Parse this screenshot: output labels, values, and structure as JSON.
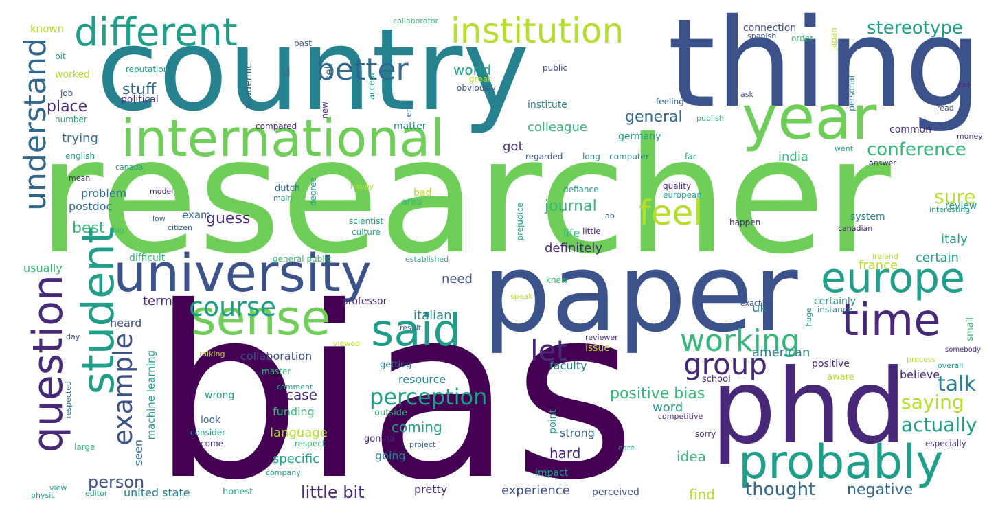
{
  "palette": {
    "dark_purple": "#440154",
    "indigo": "#482878",
    "slate_blue": "#3b528b",
    "blue": "#31688e",
    "teal_blue": "#26828e",
    "teal": "#1f9e89",
    "green": "#35b779",
    "light_green": "#6ece58",
    "lime": "#b5de2b",
    "yellow": "#fde725"
  },
  "words": [
    {
      "text": "researcher",
      "tone": "light_green"
    },
    {
      "text": "country",
      "tone": "teal_blue"
    },
    {
      "text": "thing",
      "tone": "slate_blue"
    },
    {
      "text": "bias",
      "tone": "dark_purple"
    },
    {
      "text": "paper",
      "tone": "slate_blue"
    },
    {
      "text": "phd",
      "tone": "indigo"
    },
    {
      "text": "year",
      "tone": "light_green"
    },
    {
      "text": "international",
      "tone": "light_green"
    },
    {
      "text": "university",
      "tone": "slate_blue"
    },
    {
      "text": "different",
      "tone": "teal"
    },
    {
      "text": "institution",
      "tone": "lime"
    },
    {
      "text": "better",
      "tone": "blue"
    },
    {
      "text": "sense",
      "tone": "light_green"
    },
    {
      "text": "student",
      "tone": "teal"
    },
    {
      "text": "question",
      "tone": "indigo"
    },
    {
      "text": "understand",
      "tone": "blue"
    },
    {
      "text": "said",
      "tone": "teal"
    },
    {
      "text": "time",
      "tone": "indigo"
    },
    {
      "text": "europe",
      "tone": "teal"
    },
    {
      "text": "probably",
      "tone": "teal"
    },
    {
      "text": "feel",
      "tone": "lime"
    },
    {
      "text": "working",
      "tone": "green"
    },
    {
      "text": "group",
      "tone": "indigo"
    },
    {
      "text": "course",
      "tone": "teal"
    },
    {
      "text": "example",
      "tone": "slate_blue"
    },
    {
      "text": "let",
      "tone": "indigo"
    },
    {
      "text": "perception",
      "tone": "teal"
    },
    {
      "text": "stereotype",
      "tone": "teal"
    },
    {
      "text": "conference",
      "tone": "green"
    },
    {
      "text": "sure",
      "tone": "lime"
    },
    {
      "text": "talk",
      "tone": "teal_blue"
    },
    {
      "text": "saying",
      "tone": "lime"
    },
    {
      "text": "actually",
      "tone": "teal"
    },
    {
      "text": "person",
      "tone": "slate_blue"
    },
    {
      "text": "little bit",
      "tone": "indigo"
    },
    {
      "text": "thought",
      "tone": "blue"
    },
    {
      "text": "negative",
      "tone": "blue"
    },
    {
      "text": "positive bias",
      "tone": "green"
    },
    {
      "text": "journal",
      "tone": "green"
    },
    {
      "text": "general",
      "tone": "blue"
    },
    {
      "text": "world",
      "tone": "teal"
    },
    {
      "text": "stuff",
      "tone": "blue"
    },
    {
      "text": "place",
      "tone": "indigo"
    },
    {
      "text": "trying",
      "tone": "blue"
    },
    {
      "text": "colleague",
      "tone": "green"
    },
    {
      "text": "got",
      "tone": "indigo"
    },
    {
      "text": "india",
      "tone": "green"
    },
    {
      "text": "guess",
      "tone": "indigo"
    },
    {
      "text": "best",
      "tone": "green"
    },
    {
      "text": "problem",
      "tone": "blue"
    },
    {
      "text": "postdoc",
      "tone": "blue"
    },
    {
      "text": "exam",
      "tone": "blue"
    },
    {
      "text": "definitely",
      "tone": "indigo"
    },
    {
      "text": "life",
      "tone": "green"
    },
    {
      "text": "italy",
      "tone": "teal"
    },
    {
      "text": "certain",
      "tone": "teal"
    },
    {
      "text": "france",
      "tone": "lime"
    },
    {
      "text": "review",
      "tone": "teal"
    },
    {
      "text": "system",
      "tone": "teal_blue"
    },
    {
      "text": "uk",
      "tone": "teal_blue"
    },
    {
      "text": "american",
      "tone": "teal_blue"
    },
    {
      "text": "believe",
      "tone": "indigo"
    },
    {
      "text": "certainly",
      "tone": "teal_blue"
    },
    {
      "text": "need",
      "tone": "slate_blue"
    },
    {
      "text": "term",
      "tone": "indigo"
    },
    {
      "text": "italian",
      "tone": "teal_blue"
    },
    {
      "text": "heard",
      "tone": "slate_blue"
    },
    {
      "text": "collaboration",
      "tone": "slate_blue"
    },
    {
      "text": "case",
      "tone": "indigo"
    },
    {
      "text": "resource",
      "tone": "teal_blue"
    },
    {
      "text": "faculty",
      "tone": "teal_blue"
    },
    {
      "text": "hard",
      "tone": "indigo"
    },
    {
      "text": "idea",
      "tone": "green"
    },
    {
      "text": "word",
      "tone": "teal"
    },
    {
      "text": "strong",
      "tone": "blue"
    },
    {
      "text": "coming",
      "tone": "teal"
    },
    {
      "text": "language",
      "tone": "lime"
    },
    {
      "text": "funding",
      "tone": "green"
    },
    {
      "text": "specific",
      "tone": "teal"
    },
    {
      "text": "experience",
      "tone": "slate_blue"
    },
    {
      "text": "find",
      "tone": "lime"
    },
    {
      "text": "united state",
      "tone": "teal_blue"
    },
    {
      "text": "pretty",
      "tone": "indigo"
    },
    {
      "text": "going",
      "tone": "teal_blue"
    },
    {
      "text": "look",
      "tone": "blue"
    },
    {
      "text": "seen",
      "tone": "blue"
    },
    {
      "text": "wrong",
      "tone": "teal"
    },
    {
      "text": "usually",
      "tone": "green"
    },
    {
      "text": "difficult",
      "tone": "green"
    },
    {
      "text": "known",
      "tone": "lime"
    },
    {
      "text": "worked",
      "tone": "lime"
    },
    {
      "text": "political",
      "tone": "indigo"
    },
    {
      "text": "reputation",
      "tone": "teal"
    },
    {
      "text": "ill",
      "tone": "blue"
    },
    {
      "text": "tell",
      "tone": "blue"
    },
    {
      "text": "academic",
      "tone": "blue"
    },
    {
      "text": "institute",
      "tone": "teal_blue"
    },
    {
      "text": "matter",
      "tone": "teal_blue"
    },
    {
      "text": "germany",
      "tone": "teal"
    },
    {
      "text": "english",
      "tone": "teal"
    },
    {
      "text": "number",
      "tone": "teal"
    },
    {
      "text": "bit",
      "tone": "teal"
    },
    {
      "text": "job",
      "tone": "slate_blue"
    },
    {
      "text": "past",
      "tone": "slate_blue"
    },
    {
      "text": "collaborator",
      "tone": "green"
    },
    {
      "text": "connection",
      "tone": "slate_blue"
    },
    {
      "text": "spanish",
      "tone": "slate_blue"
    },
    {
      "text": "order",
      "tone": "green"
    },
    {
      "text": "japan",
      "tone": "lime"
    },
    {
      "text": "public",
      "tone": "slate_blue"
    },
    {
      "text": "great",
      "tone": "lime"
    },
    {
      "text": "obviously",
      "tone": "slate_blue"
    },
    {
      "text": "accept",
      "tone": "teal"
    },
    {
      "text": "new",
      "tone": "indigo"
    },
    {
      "text": "end",
      "tone": "blue"
    },
    {
      "text": "compared",
      "tone": "indigo"
    },
    {
      "text": "feeling",
      "tone": "blue"
    },
    {
      "text": "publish",
      "tone": "green"
    },
    {
      "text": "personal",
      "tone": "teal_blue"
    },
    {
      "text": "ask",
      "tone": "slate_blue"
    },
    {
      "text": "joke",
      "tone": "indigo"
    },
    {
      "text": "read",
      "tone": "slate_blue"
    },
    {
      "text": "common",
      "tone": "indigo"
    },
    {
      "text": "money",
      "tone": "indigo"
    },
    {
      "text": "went",
      "tone": "teal"
    },
    {
      "text": "answer",
      "tone": "indigo"
    },
    {
      "text": "regarded",
      "tone": "slate_blue"
    },
    {
      "text": "long",
      "tone": "teal_blue"
    },
    {
      "text": "computer",
      "tone": "teal_blue"
    },
    {
      "text": "far",
      "tone": "teal"
    },
    {
      "text": "canada",
      "tone": "teal"
    },
    {
      "text": "able",
      "tone": "light_green"
    },
    {
      "text": "mean",
      "tone": "indigo"
    },
    {
      "text": "dutch",
      "tone": "blue"
    },
    {
      "text": "main",
      "tone": "teal"
    },
    {
      "text": "happy",
      "tone": "lime"
    },
    {
      "text": "model",
      "tone": "indigo"
    },
    {
      "text": "low",
      "tone": "blue"
    },
    {
      "text": "citizen",
      "tone": "blue"
    },
    {
      "text": "big",
      "tone": "green"
    },
    {
      "text": "degree",
      "tone": "teal"
    },
    {
      "text": "area",
      "tone": "green"
    },
    {
      "text": "bad",
      "tone": "lime"
    },
    {
      "text": "scientist",
      "tone": "teal"
    },
    {
      "text": "culture",
      "tone": "teal"
    },
    {
      "text": "prejudice",
      "tone": "teal"
    },
    {
      "text": "defiance",
      "tone": "teal"
    },
    {
      "text": "quality",
      "tone": "indigo"
    },
    {
      "text": "european",
      "tone": "teal"
    },
    {
      "text": "lab",
      "tone": "blue"
    },
    {
      "text": "little",
      "tone": "indigo"
    },
    {
      "text": "happen",
      "tone": "indigo"
    },
    {
      "text": "canadian",
      "tone": "indigo"
    },
    {
      "text": "interesting",
      "tone": "teal"
    },
    {
      "text": "general public",
      "tone": "green"
    },
    {
      "text": "established",
      "tone": "teal"
    },
    {
      "text": "ireland",
      "tone": "lime"
    },
    {
      "text": "knew",
      "tone": "green"
    },
    {
      "text": "speak",
      "tone": "lime"
    },
    {
      "text": "professor",
      "tone": "indigo"
    },
    {
      "text": "result",
      "tone": "blue"
    },
    {
      "text": "viewed",
      "tone": "lime"
    },
    {
      "text": "reviewer",
      "tone": "indigo"
    },
    {
      "text": "issue",
      "tone": "lime"
    },
    {
      "text": "exactly",
      "tone": "slate_blue"
    },
    {
      "text": "instance",
      "tone": "teal_blue"
    },
    {
      "text": "huge",
      "tone": "teal"
    },
    {
      "text": "small",
      "tone": "green"
    },
    {
      "text": "somebody",
      "tone": "indigo"
    },
    {
      "text": "process",
      "tone": "lime"
    },
    {
      "text": "overall",
      "tone": "teal"
    },
    {
      "text": "positive",
      "tone": "indigo"
    },
    {
      "text": "aware",
      "tone": "lime"
    },
    {
      "text": "school",
      "tone": "indigo"
    },
    {
      "text": "day",
      "tone": "slate_blue"
    },
    {
      "text": "talking",
      "tone": "lime"
    },
    {
      "text": "machine learning",
      "tone": "teal"
    },
    {
      "text": "master",
      "tone": "green"
    },
    {
      "text": "getting",
      "tone": "teal_blue"
    },
    {
      "text": "comment",
      "tone": "teal"
    },
    {
      "text": "outside",
      "tone": "green"
    },
    {
      "text": "consider",
      "tone": "teal"
    },
    {
      "text": "respect",
      "tone": "green"
    },
    {
      "text": "come",
      "tone": "indigo"
    },
    {
      "text": "gon na",
      "tone": "indigo"
    },
    {
      "text": "project",
      "tone": "blue"
    },
    {
      "text": "point",
      "tone": "teal"
    },
    {
      "text": "competitive",
      "tone": "indigo"
    },
    {
      "text": "sorry",
      "tone": "indigo"
    },
    {
      "text": "care",
      "tone": "teal"
    },
    {
      "text": "especially",
      "tone": "indigo"
    },
    {
      "text": "impact",
      "tone": "teal"
    },
    {
      "text": "perceived",
      "tone": "slate_blue"
    },
    {
      "text": "honest",
      "tone": "teal"
    },
    {
      "text": "company",
      "tone": "teal"
    },
    {
      "text": "editor",
      "tone": "teal"
    },
    {
      "text": "view",
      "tone": "teal"
    },
    {
      "text": "physic",
      "tone": "teal"
    },
    {
      "text": "large",
      "tone": "green"
    },
    {
      "text": "respected",
      "tone": "blue"
    }
  ]
}
